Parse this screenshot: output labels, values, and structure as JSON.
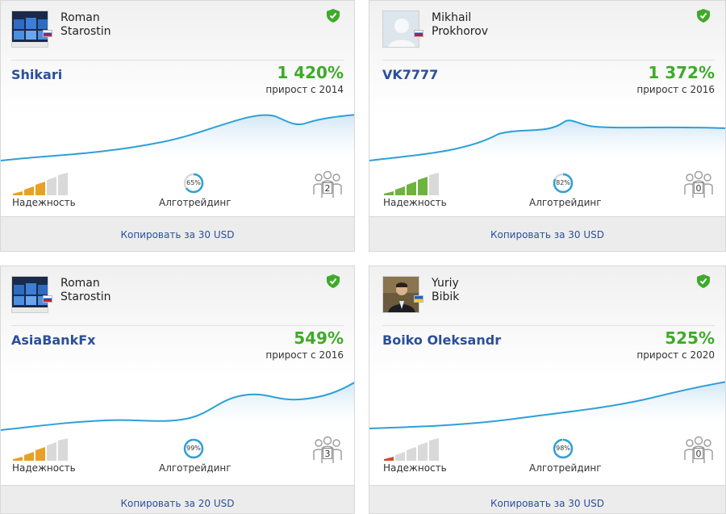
{
  "cards": [
    {
      "first_name": "Roman",
      "last_name": "Starostin",
      "avatar": "monitors-photo",
      "flag": "ru",
      "account": "Shikari",
      "growth": "1 420%",
      "since": "прирост с 2014",
      "reliability_level": 3,
      "reliability_label": "Надежность",
      "reliability_color": "#e8a126",
      "algo_percent": 65,
      "algo_value": "65%",
      "algo_label": "Алготрейдинг",
      "subscribers": "2",
      "copy_label": "Копировать за 30 USD"
    },
    {
      "first_name": "Mikhail",
      "last_name": "Prokhorov",
      "avatar": "default-avatar",
      "flag": "ru",
      "account": "VK7777",
      "growth": "1 372%",
      "since": "прирост с 2016",
      "reliability_level": 4,
      "reliability_label": "Надежность",
      "reliability_color": "#6db33f",
      "algo_percent": 82,
      "algo_value": "82%",
      "algo_label": "Алготрейдинг",
      "subscribers": "0",
      "copy_label": "Копировать за 30 USD"
    },
    {
      "first_name": "Roman",
      "last_name": "Starostin",
      "avatar": "monitors-photo",
      "flag": "ru",
      "account": "AsiaBankFx",
      "growth": "549%",
      "since": "прирост с 2016",
      "reliability_level": 3,
      "reliability_label": "Надежность",
      "reliability_color": "#e8a126",
      "algo_percent": 99,
      "algo_value": "99%",
      "algo_label": "Алготрейдинг",
      "subscribers": "3",
      "copy_label": "Копировать за 20 USD"
    },
    {
      "first_name": "Yuriy",
      "last_name": "Bibik",
      "avatar": "person-photo",
      "flag": "ua",
      "account": "Boiko Oleksandr",
      "growth": "525%",
      "since": "прирост с 2020",
      "reliability_level": 1,
      "reliability_label": "Надежность",
      "reliability_color": "#d64a2a",
      "algo_percent": 98,
      "algo_value": "98%",
      "algo_label": "Алготрейдинг",
      "subscribers": "0",
      "copy_label": "Копировать за 30 USD"
    }
  ],
  "colors": {
    "accent": "#2a4f9c",
    "growth": "#3faa2a",
    "line": "#2ea0d6",
    "shield": "#3faa2a"
  }
}
